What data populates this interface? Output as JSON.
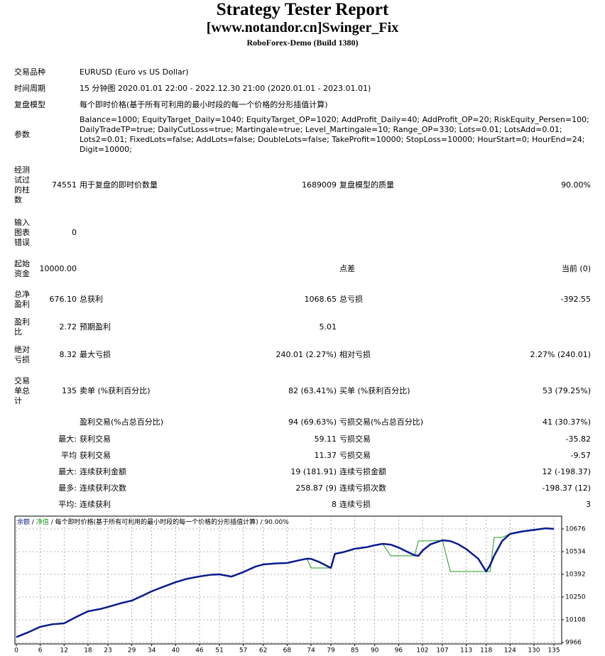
{
  "header": {
    "title": "Strategy Tester Report",
    "subtitle": "[www.notandor.cn]Swinger_Fix",
    "server": "RoboForex-Demo (Build 1380)"
  },
  "info": [
    {
      "label": "交易品种",
      "value": [
        "EURUSD (Euro vs US Dollar)"
      ]
    },
    {
      "label": "时间周期",
      "value": [
        "15 分钟图 2020.01.01 22:00 - 2022.12.30 21:00 (2020.01.01 - 2023.01.01)"
      ]
    },
    {
      "label": "复盘模型",
      "value": [
        "每个即时价格(基于所有可利用的最小时段的每一个价格的分形插值计算)"
      ]
    },
    {
      "label": "参数",
      "value": [
        "Balance=1000; EquityTarget_Daily=1040; EquityTarget_OP=1020; AddProfit_Daily=40; AddProfit_OP=20; RiskEquity_Persen=100;",
        "DailyTradeTP=true; DailyCutLoss=true; Martingale=true; Level_Martingale=10; Range_OP=330; Lots=0.01; LotsAdd=0.01;",
        "Lots2=0.01; FixedLots=false; AddLots=false; DoubleLots=false; TakeProfit=10000; StopLoss=10000; HourStart=0; HourEnd=24;",
        "Digit=10000;"
      ]
    }
  ],
  "stats": [
    [
      "经测试过的柱数",
      "74551",
      "用于复盘的即时价数量",
      "1689009",
      "复盘模型的质量",
      "90.00%"
    ],
    [
      "输入图表错误",
      "0",
      null,
      null,
      null,
      null
    ],
    [
      "起始资金",
      "10000.00",
      null,
      null,
      "点差",
      "当前 (0)"
    ],
    [
      "总净盈利",
      "676.10",
      "总获利",
      "1068.65",
      "总亏损",
      "-392.55"
    ],
    [
      "盈利比",
      "2.72",
      "预期盈利",
      "5.01",
      null,
      null
    ],
    [
      "绝对亏损",
      "8.32",
      "最大亏损",
      "240.01 (2.27%)",
      "相对亏损",
      "2.27% (240.01)"
    ],
    [
      "交易单总计",
      "135",
      "卖单 (%获利百分比)",
      "82 (63.41%)",
      "买单 (%获利百分比)",
      "53 (79.25%)"
    ],
    [
      null,
      null,
      "盈利交易(%占总百分比)",
      "94 (69.63%)",
      "亏损交易(%占总百分比)",
      "41 (30.37%)"
    ],
    [
      null,
      "最大:",
      "获利交易",
      "59.11",
      "亏损交易",
      "-35.82"
    ],
    [
      null,
      "平均",
      "获利交易",
      "11.37",
      "亏损交易",
      "-9.57"
    ],
    [
      null,
      "最大:",
      "连续获利金额",
      "19 (181.91)",
      "连续亏损金额",
      "12 (-198.37)"
    ],
    [
      null,
      "最多:",
      "连续获利次数",
      "258.87 (9)",
      "连续亏损次数",
      "-198.37 (12)"
    ],
    [
      null,
      "平均:",
      "连续获利",
      "8",
      "连续亏损",
      "3"
    ]
  ],
  "chart_data": {
    "type": "line",
    "note": "每个即时价格(基于所有可利用的最小时段的每一个价格的分形插值计算)",
    "quality": "90.00%",
    "separator": "/",
    "x": [
      0,
      3,
      6,
      9,
      12,
      15,
      18,
      21,
      23,
      26,
      29,
      32,
      34,
      37,
      40,
      43,
      46,
      49,
      51,
      54,
      57,
      60,
      62,
      65,
      68,
      71,
      73,
      74,
      76,
      79,
      80,
      82,
      85,
      88,
      90,
      92,
      94,
      96,
      98,
      100,
      101,
      102,
      104,
      107,
      109,
      111,
      113,
      116,
      118,
      119,
      120,
      122,
      124,
      127,
      130,
      133,
      135
    ],
    "series": [
      {
        "name": "净值",
        "color": "#1f9a1f",
        "values": [
          10000,
          10030,
          10064,
          10080,
          10086,
          10125,
          10161,
          10175,
          10188,
          10210,
          10228,
          10262,
          10286,
          10315,
          10343,
          10365,
          10379,
          10390,
          10392,
          10378,
          10406,
          10440,
          10454,
          10460,
          10463,
          10480,
          10490,
          10432,
          10432,
          10432,
          10520,
          10530,
          10552,
          10562,
          10574,
          10583,
          10508,
          10508,
          10508,
          10508,
          10601,
          10601,
          10601,
          10605,
          10410,
          10410,
          10410,
          10410,
          10410,
          10410,
          10623,
          10623,
          10645,
          10660,
          10670,
          10680,
          10676
        ]
      },
      {
        "name": "余额",
        "color": "#0a1a8c",
        "values": [
          10000,
          10030,
          10064,
          10080,
          10086,
          10125,
          10161,
          10175,
          10188,
          10210,
          10228,
          10262,
          10286,
          10315,
          10343,
          10365,
          10379,
          10390,
          10392,
          10378,
          10406,
          10440,
          10454,
          10460,
          10463,
          10480,
          10490,
          10489,
          10470,
          10432,
          10520,
          10530,
          10552,
          10562,
          10574,
          10583,
          10578,
          10560,
          10535,
          10512,
          10508,
          10540,
          10580,
          10605,
          10600,
          10580,
          10550,
          10490,
          10410,
          10450,
          10508,
          10600,
          10645,
          10660,
          10670,
          10680,
          10676
        ]
      }
    ],
    "xlim": [
      0,
      135
    ],
    "ylim": [
      9966,
      10676
    ],
    "xticks": [
      0,
      6,
      12,
      18,
      23,
      29,
      34,
      40,
      46,
      51,
      57,
      62,
      68,
      74,
      79,
      85,
      90,
      96,
      102,
      107,
      113,
      118,
      124,
      130,
      135
    ],
    "yticks": [
      9966,
      10108,
      10250,
      10392,
      10534,
      10676
    ],
    "grid": true
  }
}
